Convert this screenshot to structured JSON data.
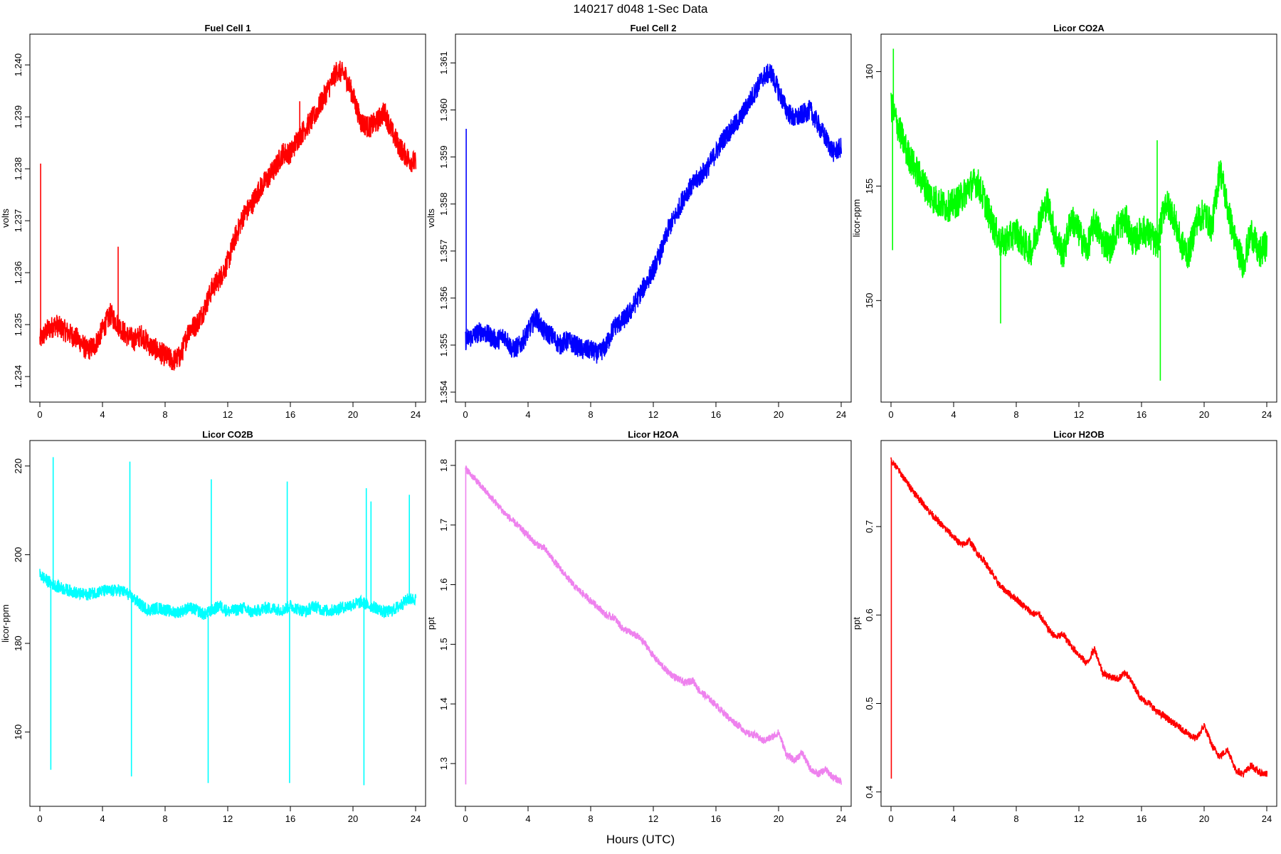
{
  "title": "140217   d048   1-Sec Data",
  "xlabel": "Hours (UTC)",
  "chart_data": [
    {
      "type": "line",
      "title": "Fuel Cell 1",
      "ylabel": "volts",
      "color": "#ff0000",
      "xticks": [
        "0",
        "4",
        "8",
        "12",
        "16",
        "20",
        "24"
      ],
      "yticks": [
        "1.234",
        "1.235",
        "1.236",
        "1.237",
        "1.238",
        "1.239",
        "1.240"
      ],
      "xlim": [
        0,
        24
      ],
      "ylim": [
        1.2337,
        1.2404
      ],
      "noise": 0.00022,
      "x": [
        0,
        0.5,
        1,
        1.5,
        2,
        2.5,
        3,
        3.5,
        4,
        4.5,
        5,
        5.5,
        6,
        6.5,
        7,
        7.5,
        8,
        8.5,
        9,
        9.5,
        10,
        10.5,
        11,
        11.5,
        12,
        12.5,
        13,
        13.5,
        14,
        14.5,
        15,
        15.5,
        16,
        16.5,
        17,
        17.5,
        18,
        18.5,
        19,
        19.5,
        20,
        20.5,
        21,
        21.5,
        22,
        22.5,
        23,
        23.5,
        24
      ],
      "values": [
        1.2347,
        1.2349,
        1.235,
        1.2349,
        1.2348,
        1.2347,
        1.2345,
        1.2346,
        1.2349,
        1.2352,
        1.235,
        1.2348,
        1.2347,
        1.2348,
        1.2346,
        1.2345,
        1.2344,
        1.2343,
        1.2344,
        1.2349,
        1.235,
        1.2353,
        1.2357,
        1.2359,
        1.2362,
        1.2367,
        1.2371,
        1.2373,
        1.2376,
        1.2378,
        1.238,
        1.2383,
        1.2383,
        1.2386,
        1.2388,
        1.239,
        1.2393,
        1.2396,
        1.2399,
        1.2398,
        1.2394,
        1.2389,
        1.2388,
        1.2389,
        1.2391,
        1.2387,
        1.2384,
        1.2382,
        1.2381
      ],
      "spikes": [
        {
          "x": 0.05,
          "y": 1.2381
        },
        {
          "x": 5.0,
          "y": 1.2365
        },
        {
          "x": 16.6,
          "y": 1.2393
        }
      ]
    },
    {
      "type": "line",
      "title": "Fuel Cell 2",
      "ylabel": "volts",
      "color": "#0000ff",
      "xticks": [
        "0",
        "4",
        "8",
        "12",
        "16",
        "20",
        "24"
      ],
      "yticks": [
        "1.354",
        "1.355",
        "1.356",
        "1.357",
        "1.358",
        "1.359",
        "1.360",
        "1.361"
      ],
      "xlim": [
        0,
        24
      ],
      "ylim": [
        1.354,
        1.3614
      ],
      "noise": 0.00022,
      "x": [
        0,
        0.5,
        1,
        1.5,
        2,
        2.5,
        3,
        3.5,
        4,
        4.5,
        5,
        5.5,
        6,
        6.5,
        7,
        7.5,
        8,
        8.5,
        9,
        9.5,
        10,
        10.5,
        11,
        11.5,
        12,
        12.5,
        13,
        13.5,
        14,
        14.5,
        15,
        15.5,
        16,
        16.5,
        17,
        17.5,
        18,
        18.5,
        19,
        19.5,
        20,
        20.5,
        21,
        21.5,
        22,
        22.5,
        23,
        23.5,
        24
      ],
      "values": [
        1.3551,
        1.3552,
        1.3553,
        1.3552,
        1.3551,
        1.3552,
        1.3549,
        1.355,
        1.3553,
        1.3556,
        1.3553,
        1.3552,
        1.355,
        1.3551,
        1.355,
        1.3549,
        1.3549,
        1.3548,
        1.355,
        1.3554,
        1.3555,
        1.3557,
        1.356,
        1.3563,
        1.3566,
        1.357,
        1.3575,
        1.3578,
        1.3582,
        1.3584,
        1.3586,
        1.3588,
        1.3591,
        1.3594,
        1.3596,
        1.3598,
        1.3601,
        1.3604,
        1.3607,
        1.3608,
        1.3604,
        1.36,
        1.3598,
        1.3599,
        1.36,
        1.3597,
        1.3594,
        1.3591,
        1.3592
      ],
      "spikes": [
        {
          "x": 0.05,
          "y": 1.3596
        }
      ]
    },
    {
      "type": "line",
      "title": "Licor CO2A",
      "ylabel": "licor-ppm",
      "color": "#00ff00",
      "xticks": [
        "0",
        "4",
        "8",
        "12",
        "16",
        "20",
        "24"
      ],
      "yticks": [
        "150",
        "155",
        "160"
      ],
      "xlim": [
        0,
        24
      ],
      "ylim": [
        146,
        161.2
      ],
      "noise": 0.7,
      "x": [
        0,
        0.5,
        1,
        1.5,
        2,
        2.5,
        3,
        3.5,
        4,
        4.5,
        5,
        5.5,
        6,
        6.5,
        7,
        7.5,
        8,
        8.5,
        9,
        9.5,
        10,
        10.5,
        11,
        11.5,
        12,
        12.5,
        13,
        13.5,
        14,
        14.5,
        15,
        15.5,
        16,
        16.5,
        17,
        17.5,
        18,
        18.5,
        19,
        19.5,
        20,
        20.5,
        21,
        21.5,
        22,
        22.5,
        23,
        23.5,
        24
      ],
      "values": [
        158.5,
        157.5,
        156.5,
        155.8,
        155.2,
        154.6,
        154.3,
        154.1,
        154.2,
        154.5,
        155.0,
        155.2,
        154.3,
        153.3,
        152.5,
        152.7,
        153.0,
        152.4,
        152.2,
        153.6,
        154.3,
        152.8,
        152.0,
        153.6,
        153.0,
        152.2,
        153.5,
        152.6,
        152.3,
        153.3,
        153.5,
        152.5,
        153.1,
        152.9,
        152.4,
        154.3,
        153.8,
        152.5,
        152.0,
        153.5,
        153.8,
        153.2,
        155.8,
        154.0,
        152.5,
        151.6,
        153.0,
        152.0,
        152.5
      ],
      "spikes": [
        {
          "x": 0.1,
          "y": 152.2
        },
        {
          "x": 0.15,
          "y": 161.0
        },
        {
          "x": 17.2,
          "y": 146.5
        },
        {
          "x": 7.0,
          "y": 149.0
        },
        {
          "x": 17.0,
          "y": 157.0
        }
      ]
    },
    {
      "type": "line",
      "title": "Licor CO2B",
      "ylabel": "licor-ppm",
      "color": "#00ffff",
      "xticks": [
        "0",
        "4",
        "8",
        "12",
        "16",
        "20",
        "24"
      ],
      "yticks": [
        "160",
        "180",
        "200",
        "220"
      ],
      "xlim": [
        0,
        24
      ],
      "ylim": [
        145.5,
        223.5
      ],
      "noise": 1.4,
      "x": [
        0,
        0.5,
        1,
        1.5,
        2,
        2.5,
        3,
        3.5,
        4,
        4.5,
        5,
        5.5,
        6,
        6.5,
        7,
        7.5,
        8,
        8.5,
        9,
        9.5,
        10,
        10.5,
        11,
        11.5,
        12,
        12.5,
        13,
        13.5,
        14,
        14.5,
        15,
        15.5,
        16,
        16.5,
        17,
        17.5,
        18,
        18.5,
        19,
        19.5,
        20,
        20.5,
        21,
        21.5,
        22,
        22.5,
        23,
        23.5,
        24
      ],
      "values": [
        195.5,
        194.0,
        193.0,
        192.3,
        191.8,
        191.2,
        191.0,
        191.5,
        191.8,
        191.8,
        192.0,
        191.5,
        190.0,
        188.5,
        187.5,
        188.0,
        187.6,
        187.0,
        187.2,
        188.0,
        187.5,
        186.5,
        187.5,
        188.5,
        187.2,
        187.5,
        188.0,
        187.0,
        187.5,
        188.0,
        187.8,
        187.5,
        188.5,
        187.7,
        187.2,
        188.5,
        187.6,
        187.3,
        187.8,
        188.3,
        188.8,
        189.3,
        188.5,
        188.0,
        187.0,
        187.4,
        188.5,
        190.0,
        190.0
      ],
      "spikes": [
        {
          "x": 0.7,
          "y": 151.5
        },
        {
          "x": 0.85,
          "y": 222.0
        },
        {
          "x": 5.75,
          "y": 221.0
        },
        {
          "x": 5.85,
          "y": 150.0
        },
        {
          "x": 10.75,
          "y": 148.5
        },
        {
          "x": 10.95,
          "y": 217.0
        },
        {
          "x": 15.8,
          "y": 216.5
        },
        {
          "x": 15.95,
          "y": 148.5
        },
        {
          "x": 20.7,
          "y": 148.0
        },
        {
          "x": 20.85,
          "y": 215.0
        },
        {
          "x": 21.15,
          "y": 212.0
        },
        {
          "x": 23.6,
          "y": 213.5
        }
      ]
    },
    {
      "type": "line",
      "title": "Licor H2OA",
      "ylabel": "ppt",
      "color": "#ee82ee",
      "xticks": [
        "0",
        "4",
        "8",
        "12",
        "16",
        "20",
        "24"
      ],
      "yticks": [
        "1.3",
        "1.4",
        "1.5",
        "1.6",
        "1.7",
        "1.8"
      ],
      "xlim": [
        0,
        24
      ],
      "ylim": [
        1.245,
        1.825
      ],
      "noise": 0.006,
      "x": [
        0,
        0.5,
        1,
        1.5,
        2,
        2.5,
        3,
        3.5,
        4,
        4.5,
        5,
        5.5,
        6,
        6.5,
        7,
        7.5,
        8,
        8.5,
        9,
        9.5,
        10,
        10.5,
        11,
        11.5,
        12,
        12.5,
        13,
        13.5,
        14,
        14.5,
        15,
        15.5,
        16,
        16.5,
        17,
        17.5,
        18,
        18.5,
        19,
        19.5,
        20,
        20.5,
        21,
        21.5,
        22,
        22.5,
        23,
        23.5,
        24
      ],
      "values": [
        1.795,
        1.78,
        1.765,
        1.75,
        1.735,
        1.72,
        1.707,
        1.695,
        1.682,
        1.668,
        1.662,
        1.645,
        1.628,
        1.612,
        1.596,
        1.585,
        1.573,
        1.562,
        1.548,
        1.545,
        1.527,
        1.52,
        1.513,
        1.5,
        1.48,
        1.465,
        1.452,
        1.443,
        1.435,
        1.44,
        1.42,
        1.41,
        1.398,
        1.385,
        1.372,
        1.363,
        1.35,
        1.348,
        1.338,
        1.343,
        1.352,
        1.315,
        1.305,
        1.318,
        1.292,
        1.282,
        1.29,
        1.276,
        1.27
      ],
      "spikes": [
        {
          "x": 0.02,
          "y": 1.265
        }
      ]
    },
    {
      "type": "line",
      "title": "Licor H2OB",
      "ylabel": "ppt",
      "color": "#ff0000",
      "xticks": [
        "0",
        "4",
        "8",
        "12",
        "16",
        "20",
        "24"
      ],
      "yticks": [
        "0.4",
        "0.5",
        "0.6",
        "0.7"
      ],
      "xlim": [
        0,
        24
      ],
      "ylim": [
        0.395,
        0.786
      ],
      "noise": 0.004,
      "x": [
        0,
        0.5,
        1,
        1.5,
        2,
        2.5,
        3,
        3.5,
        4,
        4.5,
        5,
        5.5,
        6,
        6.5,
        7,
        7.5,
        8,
        8.5,
        9,
        9.5,
        10,
        10.5,
        11,
        11.5,
        12,
        12.5,
        13,
        13.5,
        14,
        14.5,
        15,
        15.5,
        16,
        16.5,
        17,
        17.5,
        18,
        18.5,
        19,
        19.5,
        20,
        20.5,
        21,
        21.5,
        22,
        22.5,
        23,
        23.5,
        24
      ],
      "values": [
        0.775,
        0.763,
        0.75,
        0.738,
        0.727,
        0.716,
        0.706,
        0.697,
        0.688,
        0.679,
        0.684,
        0.67,
        0.66,
        0.645,
        0.632,
        0.625,
        0.618,
        0.61,
        0.602,
        0.6,
        0.585,
        0.575,
        0.578,
        0.565,
        0.555,
        0.545,
        0.562,
        0.535,
        0.53,
        0.528,
        0.535,
        0.52,
        0.505,
        0.5,
        0.49,
        0.485,
        0.478,
        0.472,
        0.465,
        0.46,
        0.475,
        0.452,
        0.44,
        0.448,
        0.425,
        0.42,
        0.43,
        0.422,
        0.42
      ],
      "spikes": [
        {
          "x": 0.02,
          "y": 0.415
        }
      ]
    }
  ]
}
